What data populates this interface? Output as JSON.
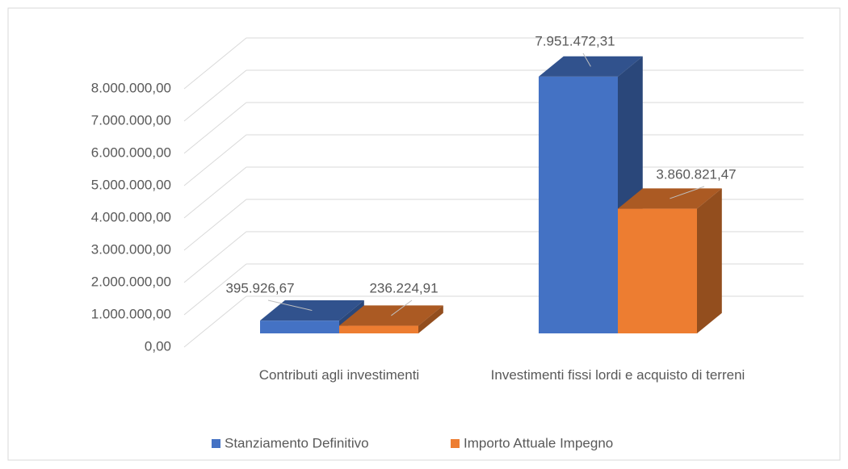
{
  "chart_data": {
    "type": "bar3d",
    "categories": [
      "Contributi agli investimenti",
      "Investimenti fissi lordi e acquisto di terreni"
    ],
    "series": [
      {
        "name": "Stanziamento Definitivo",
        "color": "#4472c4",
        "values": [
          395926.67,
          7951472.31
        ],
        "value_labels": [
          "395.926,67",
          "7.951.472,31"
        ]
      },
      {
        "name": "Importo Attuale Impegno",
        "color": "#ed7d31",
        "values": [
          236224.91,
          3860821.47
        ],
        "value_labels": [
          "236.224,91",
          "3.860.821,47"
        ]
      }
    ],
    "ylim": [
      0,
      8000000
    ],
    "yticks": [
      {
        "value": 0,
        "label": "0,00"
      },
      {
        "value": 1000000,
        "label": "1.000.000,00"
      },
      {
        "value": 2000000,
        "label": "2.000.000,00"
      },
      {
        "value": 3000000,
        "label": "3.000.000,00"
      },
      {
        "value": 4000000,
        "label": "4.000.000,00"
      },
      {
        "value": 5000000,
        "label": "5.000.000,00"
      },
      {
        "value": 6000000,
        "label": "6.000.000,00"
      },
      {
        "value": 7000000,
        "label": "7.000.000,00"
      },
      {
        "value": 8000000,
        "label": "8.000.000,00"
      }
    ],
    "grid": true,
    "legend": "bottom"
  }
}
